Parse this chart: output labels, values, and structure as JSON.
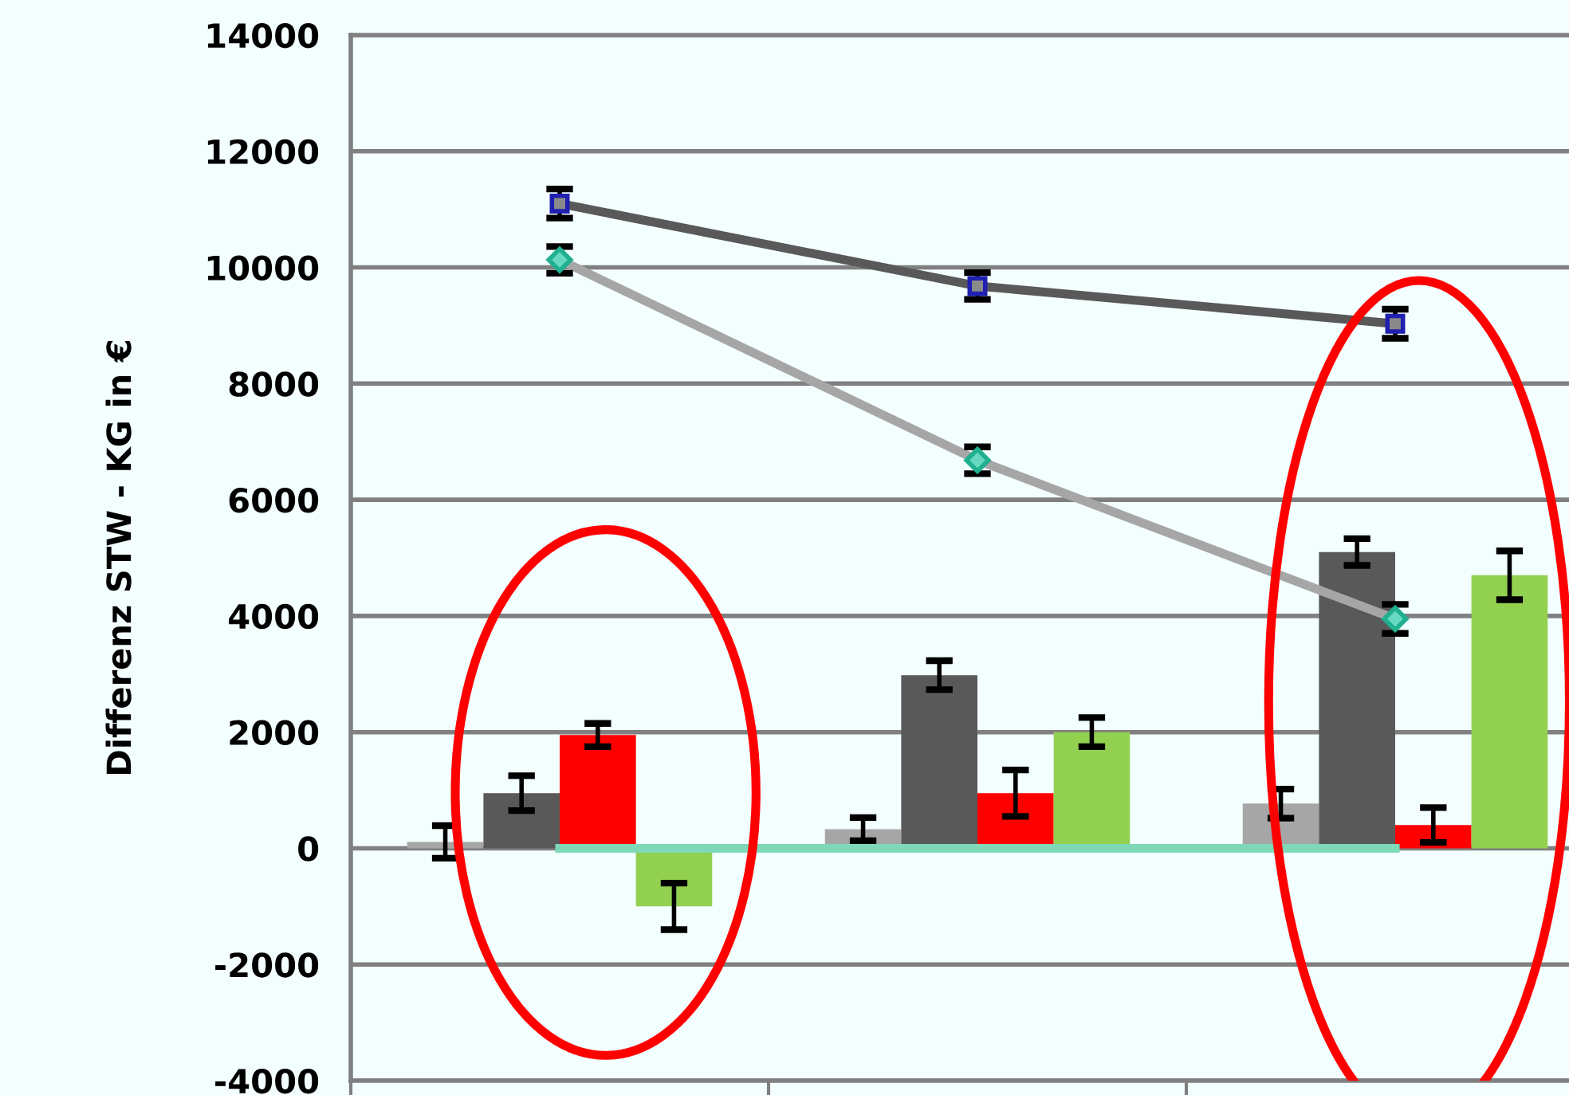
{
  "chart_data": {
    "type": "bar",
    "ylabel": "Differenz STW - KG in €",
    "categories": [
      null,
      null,
      null
    ],
    "ylim": [
      -4000,
      14000
    ],
    "yticks": [
      -4000,
      -2000,
      0,
      2000,
      4000,
      6000,
      8000,
      10000,
      12000,
      14000
    ],
    "grid": "y",
    "legend": false,
    "series": [
      {
        "color": "#a6a6a6",
        "values": [
          110,
          330,
          770
        ],
        "errors": [
          280,
          200,
          250
        ]
      },
      {
        "color": "#595959",
        "values": [
          950,
          2980,
          5100
        ],
        "errors": [
          300,
          250,
          230
        ]
      },
      {
        "color": "#ff0000",
        "values": [
          1950,
          950,
          400
        ],
        "errors": [
          200,
          400,
          300
        ]
      },
      {
        "color": "#92d050",
        "values": [
          -1000,
          2000,
          4700
        ],
        "errors": [
          400,
          250,
          420
        ]
      },
      {
        "type": "line",
        "color": "#7fd8b8",
        "values": [
          0,
          0,
          0
        ],
        "marker": "none"
      },
      {
        "type": "line",
        "color": "#595959",
        "values": [
          11100,
          9680,
          9030
        ],
        "errors": [
          250,
          230,
          250
        ],
        "marker": "square"
      },
      {
        "type": "line",
        "color": "#a6a6a6",
        "values": [
          10130,
          6680,
          3950
        ],
        "errors": [
          230,
          230,
          250
        ],
        "marker": "diamond"
      }
    ]
  }
}
